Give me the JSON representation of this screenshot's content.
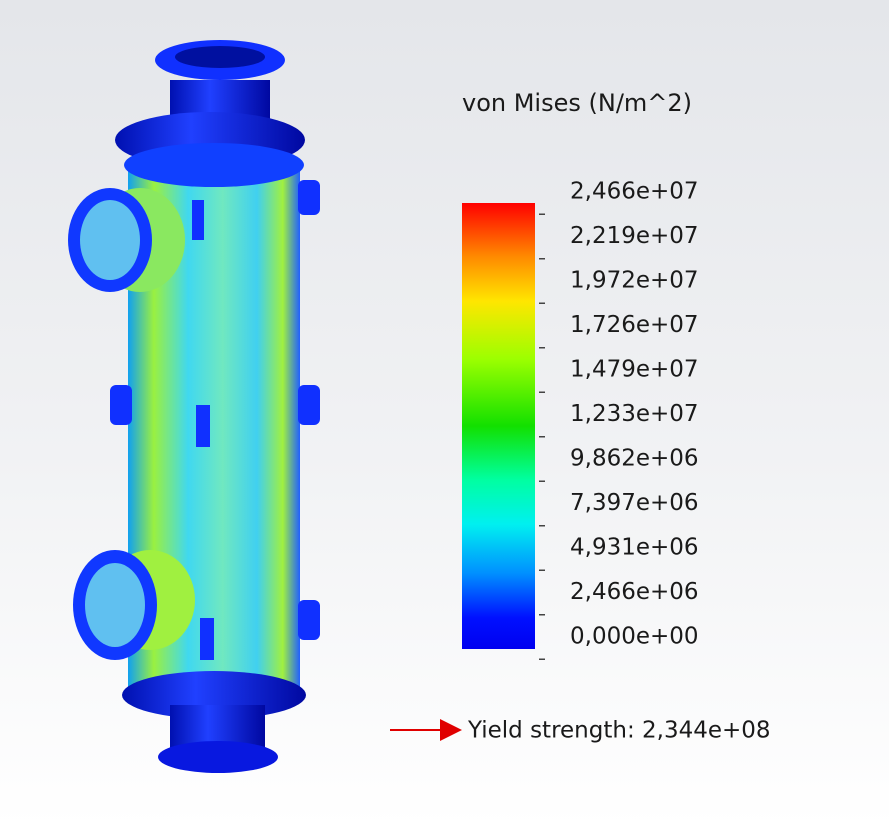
{
  "legend": {
    "title": "von Mises (N/m^2)",
    "labels": [
      "2,466e+07",
      "2,219e+07",
      "1,972e+07",
      "1,726e+07",
      "1,479e+07",
      "1,233e+07",
      "9,862e+06",
      "7,397e+06",
      "4,931e+06",
      "2,466e+06",
      "0,000e+00"
    ]
  },
  "yield": {
    "text": "Yield strength: 2,344e+08"
  }
}
